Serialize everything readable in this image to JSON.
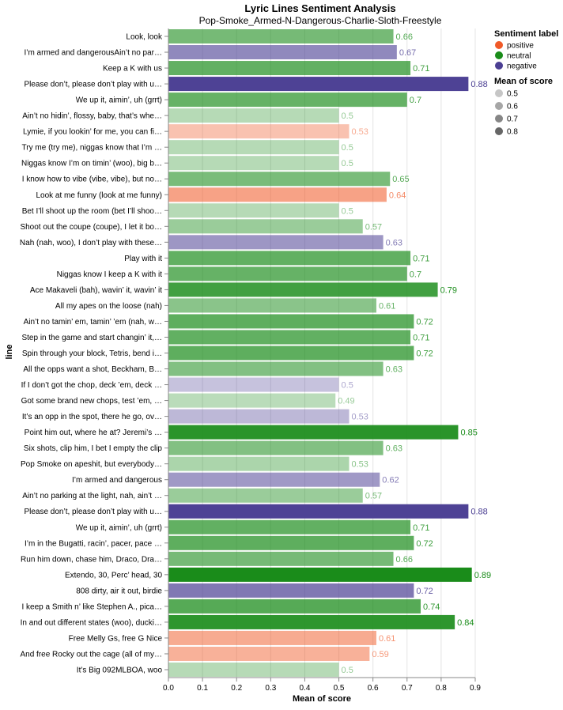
{
  "chart_data": {
    "type": "bar",
    "orientation": "horizontal",
    "title": "Lyric Lines Sentiment Analysis",
    "subtitle": "Pop-Smoke_Armed-N-Dangerous-Charlie-Sloth-Freestyle",
    "xlabel": "Mean of score",
    "ylabel": "line",
    "xlim": [
      0,
      0.9
    ],
    "xticks": [
      "0.0",
      "0.1",
      "0.2",
      "0.3",
      "0.4",
      "0.5",
      "0.6",
      "0.7",
      "0.8",
      "0.9"
    ],
    "grid": true,
    "legend_position": "top-right",
    "legend": {
      "color_title": "Sentiment label",
      "color_entries": [
        {
          "label": "positive",
          "color": "#f05a28"
        },
        {
          "label": "neutral",
          "color": "#1a8c1a"
        },
        {
          "label": "negative",
          "color": "#4b3f93"
        }
      ],
      "opacity_title": "Mean of score",
      "opacity_entries": [
        {
          "label": "0.5",
          "value": 0.5
        },
        {
          "label": "0.6",
          "value": 0.6
        },
        {
          "label": "0.7",
          "value": 0.7
        },
        {
          "label": "0.8",
          "value": 0.8
        }
      ]
    },
    "colors": {
      "positive": "#f05a28",
      "neutral": "#1a8c1a",
      "negative": "#4b3f93"
    },
    "bars": [
      {
        "line": "Look, look",
        "value": 0.66,
        "label": "0.66",
        "sentiment": "neutral"
      },
      {
        "line": "I’m armed and dangerousAin’t no par…",
        "value": 0.67,
        "label": "0.67",
        "sentiment": "negative"
      },
      {
        "line": "Keep a K with us",
        "value": 0.71,
        "label": "0.71",
        "sentiment": "neutral"
      },
      {
        "line": "Please don’t, please don’t play with u…",
        "value": 0.88,
        "label": "0.88",
        "sentiment": "negative"
      },
      {
        "line": "We up it, aimin’, uh (grrt)",
        "value": 0.7,
        "label": "0.7",
        "sentiment": "neutral"
      },
      {
        "line": "Ain’t no hidin’, flossy, baby, that’s whe…",
        "value": 0.5,
        "label": "0.5",
        "sentiment": "neutral"
      },
      {
        "line": "Lymie, if you lookin’ for me, you can fi…",
        "value": 0.53,
        "label": "0.53",
        "sentiment": "positive"
      },
      {
        "line": "Try me (try me), niggas know that I’m …",
        "value": 0.5,
        "label": "0.5",
        "sentiment": "neutral"
      },
      {
        "line": "Niggas know I’m on timin’ (woo), big b…",
        "value": 0.5,
        "label": "0.5",
        "sentiment": "neutral"
      },
      {
        "line": "I know how to vibe (vibe, vibe), but no…",
        "value": 0.65,
        "label": "0.65",
        "sentiment": "neutral"
      },
      {
        "line": "Look at me funny (look at me funny)",
        "value": 0.64,
        "label": "0.64",
        "sentiment": "positive"
      },
      {
        "line": "Bet I’ll shoot up the room (bet I’ll shoo…",
        "value": 0.5,
        "label": "0.5",
        "sentiment": "neutral"
      },
      {
        "line": "Shoot out the coupe (coupe), I let it bo…",
        "value": 0.57,
        "label": "0.57",
        "sentiment": "neutral"
      },
      {
        "line": "Nah (nah, woo), I don’t play with these…",
        "value": 0.63,
        "label": "0.63",
        "sentiment": "negative"
      },
      {
        "line": "Play with it",
        "value": 0.71,
        "label": "0.71",
        "sentiment": "neutral"
      },
      {
        "line": "Niggas know I keep a K with it",
        "value": 0.7,
        "label": "0.7",
        "sentiment": "neutral"
      },
      {
        "line": "Ace Makaveli (bah), wavin’ it, wavin’ it",
        "value": 0.79,
        "label": "0.79",
        "sentiment": "neutral"
      },
      {
        "line": "All my apes on the loose (nah)",
        "value": 0.61,
        "label": "0.61",
        "sentiment": "neutral"
      },
      {
        "line": "Ain’t no tamin’ em, tamin’ ’em (nah, w…",
        "value": 0.72,
        "label": "0.72",
        "sentiment": "neutral"
      },
      {
        "line": "Step in the game and start changin’ it,…",
        "value": 0.71,
        "label": "0.71",
        "sentiment": "neutral"
      },
      {
        "line": "Spin through your block, Tetris, bend i…",
        "value": 0.72,
        "label": "0.72",
        "sentiment": "neutral"
      },
      {
        "line": "All the opps want a shot, Beckham, B…",
        "value": 0.63,
        "label": "0.63",
        "sentiment": "neutral"
      },
      {
        "line": "If I don’t got the chop, deck ’em, deck …",
        "value": 0.5,
        "label": "0.5",
        "sentiment": "negative"
      },
      {
        "line": "Got some brand new chops, test ’em, …",
        "value": 0.49,
        "label": "0.49",
        "sentiment": "neutral"
      },
      {
        "line": "It’s an opp in the spot, there he go, ov…",
        "value": 0.53,
        "label": "0.53",
        "sentiment": "negative"
      },
      {
        "line": "Point him out, where he at? Jeremi’s …",
        "value": 0.85,
        "label": "0.85",
        "sentiment": "neutral"
      },
      {
        "line": "Six shots, clip him, I bet I empty the clip",
        "value": 0.63,
        "label": "0.63",
        "sentiment": "neutral"
      },
      {
        "line": "Pop Smoke on apeshit, but everybody…",
        "value": 0.53,
        "label": "0.53",
        "sentiment": "neutral"
      },
      {
        "line": "I’m armed and dangerous",
        "value": 0.62,
        "label": "0.62",
        "sentiment": "negative"
      },
      {
        "line": "Ain’t no parking at the light, nah, ain’t …",
        "value": 0.57,
        "label": "0.57",
        "sentiment": "neutral"
      },
      {
        "line": "Please don’t, please don’t play with u…",
        "value": 0.88,
        "label": "0.88",
        "sentiment": "negative"
      },
      {
        "line": "We up it, aimin’, uh (grrt)",
        "value": 0.71,
        "label": "0.71",
        "sentiment": "neutral"
      },
      {
        "line": "I’m in the Bugatti, racin’, pacer, pace …",
        "value": 0.72,
        "label": "0.72",
        "sentiment": "neutral"
      },
      {
        "line": "Run him down, chase him, Draco, Dra…",
        "value": 0.66,
        "label": "0.66",
        "sentiment": "neutral"
      },
      {
        "line": "Extendo, 30, Perc’ head, 30",
        "value": 0.89,
        "label": "0.89",
        "sentiment": "neutral"
      },
      {
        "line": "808 dirty, air it out, birdie",
        "value": 0.72,
        "label": "0.72",
        "sentiment": "negative"
      },
      {
        "line": "I keep a Smith n’ like Stephen A., pica…",
        "value": 0.74,
        "label": "0.74",
        "sentiment": "neutral"
      },
      {
        "line": "In and out different states (woo), ducki…",
        "value": 0.84,
        "label": "0.84",
        "sentiment": "neutral"
      },
      {
        "line": "Free Melly Gs, free G Nice",
        "value": 0.61,
        "label": "0.61",
        "sentiment": "positive"
      },
      {
        "line": "And free Rocky out the cage (all of my…",
        "value": 0.59,
        "label": "0.59",
        "sentiment": "positive"
      },
      {
        "line": "It’s Big 092MLBOA, woo",
        "value": 0.5,
        "label": "0.5",
        "sentiment": "neutral"
      }
    ]
  }
}
